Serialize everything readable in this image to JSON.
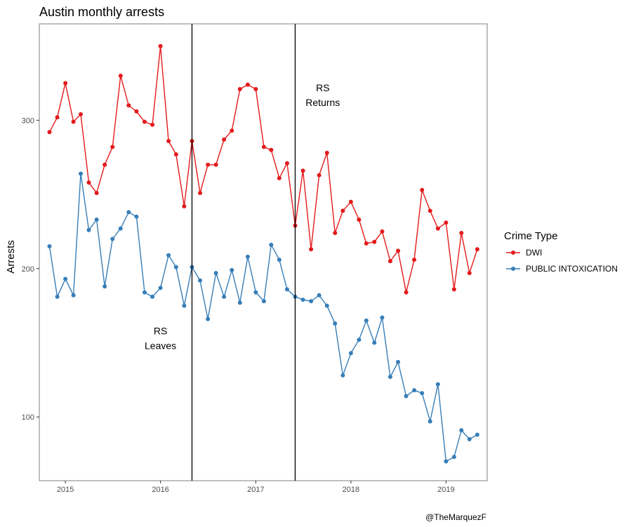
{
  "chart_data": {
    "type": "line",
    "title": "Austin monthly arrests",
    "xlabel": "",
    "ylabel": "Arrests",
    "caption": "@TheMarquezF",
    "xlim": [
      "2014-09-23",
      "2019-06-08"
    ],
    "ylim": [
      57,
      365
    ],
    "x_ticks": [
      {
        "date": "2015-01-01",
        "label": "2015"
      },
      {
        "date": "2016-01-01",
        "label": "2016"
      },
      {
        "date": "2017-01-01",
        "label": "2017"
      },
      {
        "date": "2018-01-01",
        "label": "2018"
      },
      {
        "date": "2019-01-01",
        "label": "2019"
      }
    ],
    "y_ticks": [
      100,
      200,
      300
    ],
    "grid": false,
    "legend": {
      "title": "Crime Type",
      "position": "right"
    },
    "x": [
      "2014-11",
      "2014-12",
      "2015-01",
      "2015-02",
      "2015-03",
      "2015-04",
      "2015-05",
      "2015-06",
      "2015-07",
      "2015-08",
      "2015-09",
      "2015-10",
      "2015-11",
      "2015-12",
      "2016-01",
      "2016-02",
      "2016-03",
      "2016-04",
      "2016-05",
      "2016-06",
      "2016-07",
      "2016-08",
      "2016-09",
      "2016-10",
      "2016-11",
      "2016-12",
      "2017-01",
      "2017-02",
      "2017-03",
      "2017-04",
      "2017-05",
      "2017-06",
      "2017-07",
      "2017-08",
      "2017-09",
      "2017-10",
      "2017-11",
      "2017-12",
      "2018-01",
      "2018-02",
      "2018-03",
      "2018-04",
      "2018-05",
      "2018-06",
      "2018-07",
      "2018-08",
      "2018-09",
      "2018-10",
      "2018-11",
      "2018-12",
      "2019-01",
      "2019-02",
      "2019-03",
      "2019-04",
      "2019-05"
    ],
    "series": [
      {
        "name": "DWI",
        "color": "#E41A1C",
        "values": [
          292,
          302,
          325,
          299,
          304,
          258,
          251,
          270,
          282,
          330,
          310,
          306,
          299,
          297,
          350,
          286,
          277,
          242,
          286,
          251,
          270,
          270,
          287,
          293,
          321,
          324,
          321,
          282,
          280,
          261,
          271,
          229,
          266,
          213,
          263,
          278,
          224,
          239,
          245,
          233,
          217,
          218,
          225,
          205,
          212,
          184,
          206,
          253,
          239,
          227,
          231,
          186,
          224,
          197,
          213
        ]
      },
      {
        "name": "PUBLIC INTOXICATION",
        "color": "#377EB8",
        "values": [
          215,
          181,
          193,
          182,
          264,
          226,
          233,
          188,
          220,
          227,
          238,
          235,
          184,
          181,
          187,
          209,
          201,
          175,
          201,
          192,
          166,
          197,
          181,
          199,
          177,
          208,
          184,
          178,
          216,
          206,
          186,
          181,
          179,
          178,
          182,
          175,
          163,
          128,
          143,
          152,
          165,
          150,
          167,
          127,
          137,
          114,
          118,
          116,
          97,
          122,
          70,
          73,
          91,
          85,
          88
        ]
      }
    ],
    "vlines": [
      {
        "date": "2016-05-01"
      },
      {
        "date": "2017-06-01"
      }
    ],
    "annotations": [
      {
        "lines": [
          "RS",
          "Leaves"
        ],
        "date": "2016-01-01",
        "y": 153
      },
      {
        "lines": [
          "RS",
          "Returns"
        ],
        "date": "2017-09-15",
        "y": 317
      }
    ]
  }
}
